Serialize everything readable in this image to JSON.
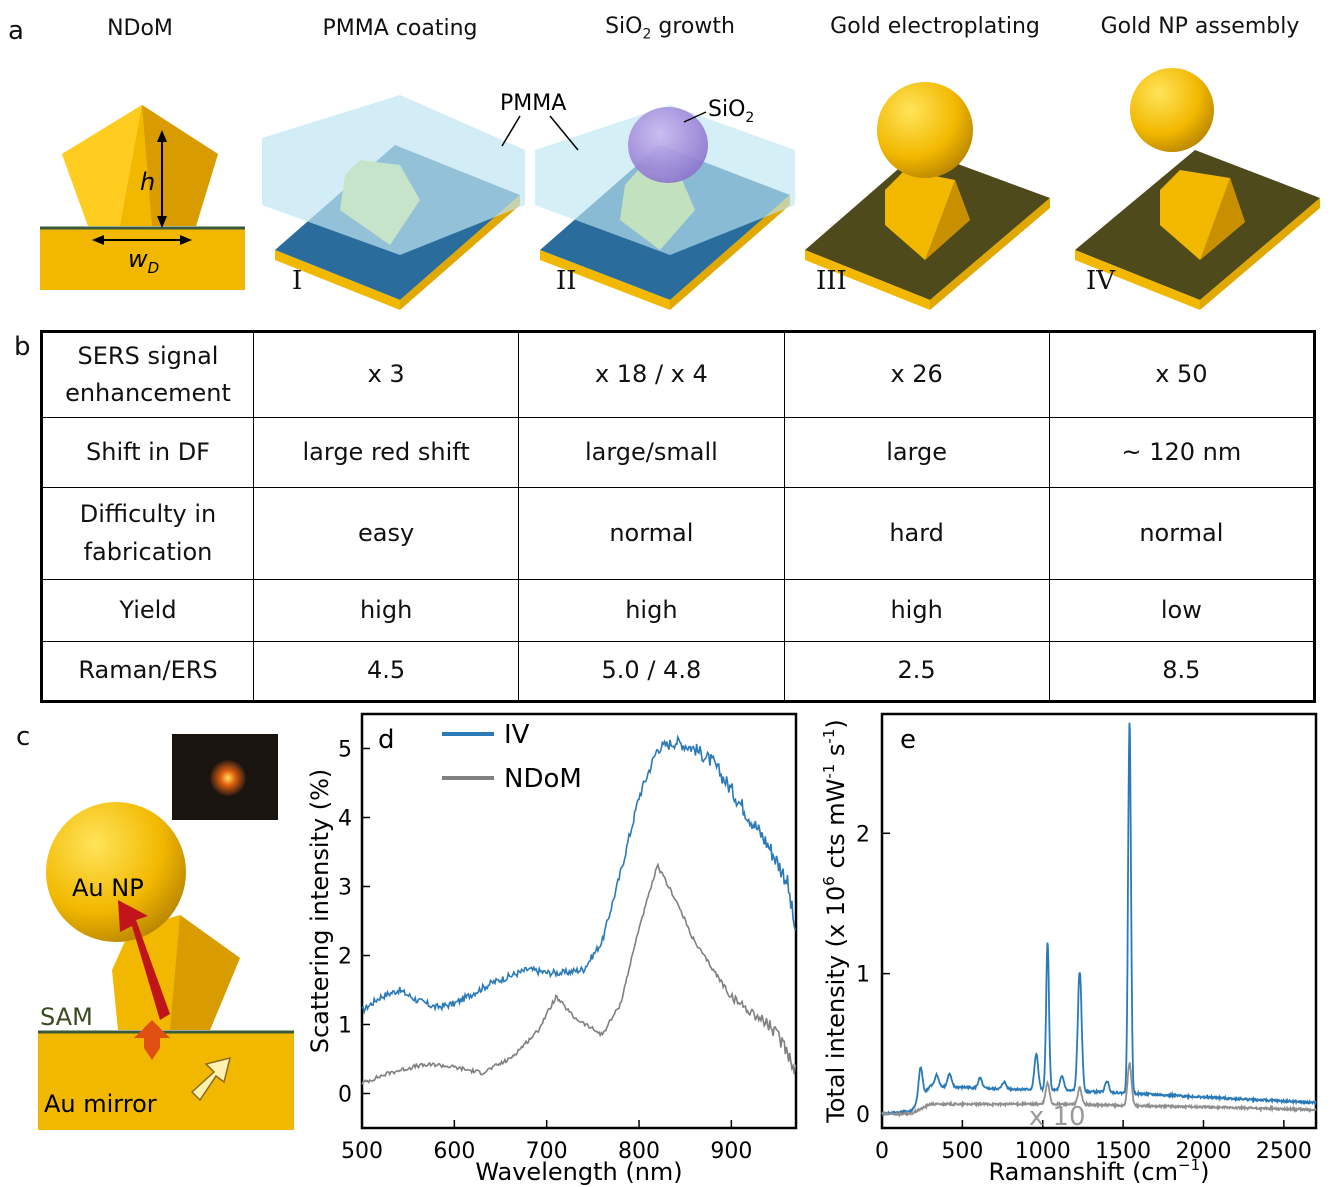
{
  "panel_labels": {
    "a": "a",
    "b": "b",
    "c": "c",
    "d": "d",
    "e": "e"
  },
  "panel_a": {
    "steps": [
      {
        "title": "NDoM",
        "roman": ""
      },
      {
        "title": "PMMA coating",
        "roman": "I"
      },
      {
        "title_main": "SiO",
        "title_sub": "2",
        "title_rest": " growth",
        "roman": "II"
      },
      {
        "title": "Gold electroplating",
        "roman": "III"
      },
      {
        "title": "Gold NP assembly",
        "roman": "IV"
      }
    ],
    "labels": {
      "h": "h",
      "w": "w",
      "w_sub": "D",
      "pmma": "PMMA",
      "sio2_main": "SiO",
      "sio2_sub": "2"
    },
    "colors": {
      "gold": "#f2b800",
      "substrate": "#2a6c9c",
      "pmma": "#bfe6f2",
      "dark_substrate": "#4e4a1c",
      "sio2": "#a08ad8"
    }
  },
  "panel_b": {
    "rows": [
      {
        "header": [
          "SERS signal",
          "enhancement"
        ],
        "cells": [
          "x 3",
          "x 18 / x 4",
          "x 26",
          "x 50"
        ]
      },
      {
        "header": [
          "Shift in DF"
        ],
        "cells": [
          "large red shift",
          "large/small",
          "large",
          "~ 120 nm"
        ]
      },
      {
        "header": [
          "Difficulty in",
          "fabrication"
        ],
        "cells": [
          "easy",
          "normal",
          "hard",
          "normal"
        ]
      },
      {
        "header": [
          "Yield"
        ],
        "cells": [
          "high",
          "high",
          "high",
          "low"
        ]
      },
      {
        "header": [
          "Raman/ERS"
        ],
        "cells": [
          "4.5",
          "5.0 / 4.8",
          "2.5",
          "8.5"
        ]
      }
    ]
  },
  "panel_c": {
    "np_label": "Au NP",
    "sam_label": "SAM",
    "mirror_label": "Au mirror"
  },
  "chart_data": [
    {
      "panel": "d",
      "type": "line",
      "xlabel": "Wavelength (nm)",
      "ylabel": "Scattering intensity (%)",
      "xlim": [
        500,
        970
      ],
      "ylim": [
        -0.5,
        5.5
      ],
      "xticks": [
        500,
        600,
        700,
        800,
        900
      ],
      "yticks": [
        0,
        1,
        2,
        3,
        4,
        5
      ],
      "legend_position": "top-left",
      "series": [
        {
          "name": "IV",
          "color": "#2a7ab8",
          "x": [
            500,
            520,
            540,
            560,
            580,
            600,
            620,
            640,
            660,
            680,
            700,
            720,
            740,
            760,
            780,
            800,
            820,
            840,
            860,
            880,
            900,
            920,
            940,
            960,
            970
          ],
          "y": [
            1.2,
            1.4,
            1.5,
            1.35,
            1.25,
            1.3,
            1.45,
            1.6,
            1.7,
            1.8,
            1.75,
            1.75,
            1.8,
            2.2,
            3.2,
            4.3,
            5.0,
            5.1,
            5.0,
            4.8,
            4.4,
            4.0,
            3.6,
            3.1,
            2.3
          ]
        },
        {
          "name": "NDoM",
          "color": "#808080",
          "x": [
            500,
            530,
            560,
            580,
            600,
            630,
            660,
            690,
            710,
            730,
            760,
            780,
            800,
            820,
            840,
            860,
            880,
            900,
            920,
            940,
            960,
            970
          ],
          "y": [
            0.15,
            0.3,
            0.4,
            0.42,
            0.38,
            0.3,
            0.5,
            0.9,
            1.4,
            1.1,
            0.85,
            1.3,
            2.4,
            3.3,
            2.8,
            2.2,
            1.8,
            1.4,
            1.2,
            1.0,
            0.65,
            0.3
          ]
        }
      ]
    },
    {
      "panel": "e",
      "type": "line",
      "xlabel_main": "Ramanshift (cm",
      "xlabel_sup": "−1",
      "xlabel_end": ")",
      "ylabel_main": "Total intensity (x 10",
      "ylabel_sup1": "6",
      "ylabel_mid": " cts mW",
      "ylabel_sup2": "-1",
      "ylabel_mid2": " s",
      "ylabel_sup3": "-1",
      "ylabel_end": ")",
      "xlim": [
        0,
        2700
      ],
      "ylim": [
        -0.1,
        2.85
      ],
      "xticks": [
        0,
        500,
        1000,
        1500,
        2000,
        2500
      ],
      "yticks": [
        0,
        1,
        2
      ],
      "annotation": "x 10",
      "series": [
        {
          "name": "",
          "color": "#2a7ab8",
          "baseline": [
            [
              0,
              0.0
            ],
            [
              180,
              0.02
            ],
            [
              300,
              0.2
            ],
            [
              700,
              0.18
            ],
            [
              1100,
              0.17
            ],
            [
              1500,
              0.15
            ],
            [
              2000,
              0.12
            ],
            [
              2700,
              0.08
            ]
          ],
          "peaks": [
            [
              240,
              0.22
            ],
            [
              340,
              0.08
            ],
            [
              420,
              0.09
            ],
            [
              610,
              0.07
            ],
            [
              760,
              0.05
            ],
            [
              960,
              0.25
            ],
            [
              1030,
              1.05
            ],
            [
              1120,
              0.1
            ],
            [
              1230,
              0.85
            ],
            [
              1400,
              0.08
            ],
            [
              1540,
              2.65
            ]
          ]
        },
        {
          "name": "",
          "color": "#909090",
          "baseline": [
            [
              0,
              0.0
            ],
            [
              180,
              0.0
            ],
            [
              300,
              0.07
            ],
            [
              700,
              0.07
            ],
            [
              1100,
              0.07
            ],
            [
              1500,
              0.06
            ],
            [
              2000,
              0.05
            ],
            [
              2700,
              0.03
            ]
          ],
          "peaks": [
            [
              1030,
              0.15
            ],
            [
              1230,
              0.12
            ],
            [
              1540,
              0.3
            ]
          ]
        }
      ]
    }
  ]
}
